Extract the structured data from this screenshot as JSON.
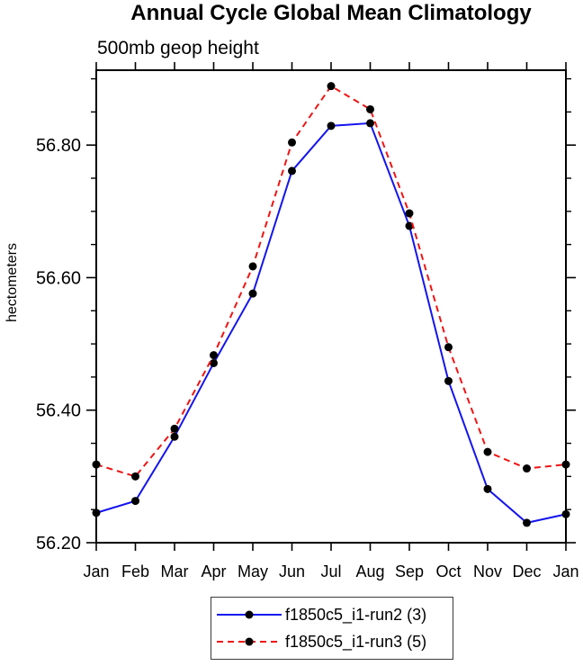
{
  "chart_data": {
    "type": "line",
    "title": "Annual Cycle Global Mean Climatology",
    "subtitle": "500mb geop height",
    "ylabel": "hectometers",
    "xlabel": "",
    "x_categories": [
      "Jan",
      "Feb",
      "Mar",
      "Apr",
      "May",
      "Jun",
      "Jul",
      "Aug",
      "Sep",
      "Oct",
      "Nov",
      "Dec",
      "Jan"
    ],
    "ylim": [
      56.2,
      56.913
    ],
    "y_major_ticks": [
      {
        "value": 56.2,
        "label": "56.20"
      },
      {
        "value": 56.4,
        "label": "56.40"
      },
      {
        "value": 56.6,
        "label": "56.60"
      },
      {
        "value": 56.8,
        "label": "56.80"
      }
    ],
    "y_minor_step": 0.05,
    "grid": false,
    "legend_position": "bottom-center",
    "frame_color": "#000000",
    "marker": {
      "shape": "circle",
      "color": "#000000",
      "radius": 4.5
    },
    "series": [
      {
        "name": "f1850c5_i1-run2 (3)",
        "color": "#1414f0",
        "line_style": "solid",
        "values": [
          56.245,
          56.263,
          56.36,
          56.471,
          56.576,
          56.761,
          56.829,
          56.833,
          56.678,
          56.444,
          56.281,
          56.23,
          56.243
        ]
      },
      {
        "name": "f1850c5_i1-run3 (5)",
        "color": "#f01414",
        "line_style": "dashed",
        "values": [
          56.318,
          56.3,
          56.372,
          56.483,
          56.617,
          56.804,
          56.889,
          56.854,
          56.697,
          56.495,
          56.337,
          56.312,
          56.318
        ]
      }
    ]
  }
}
